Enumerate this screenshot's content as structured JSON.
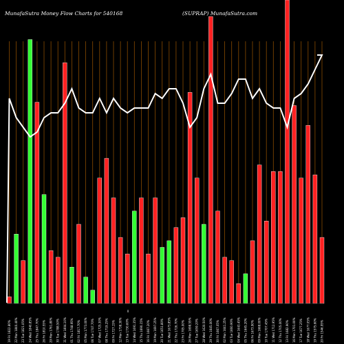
{
  "chart_data": {
    "type": "bar",
    "title_left": "MunafaSutra  Money Flow  Charts for 540168",
    "title_right": "(SUPRAP) MunafaSutra.com",
    "zero_label": "0",
    "grid": "vertical-lines",
    "colors": {
      "background": "#000000",
      "up": "#33ff33",
      "down": "#ff2222",
      "bar_outline": "#ffffff",
      "gridline": "#8a4b00",
      "line": "#ffffff"
    },
    "categories": [
      "20 Fri 1546.95%",
      "19 Thu 1575.60%",
      "18 Wed 1677.05%",
      "17 Tue 1677.25%",
      "16 Mon 1701.00%",
      "13 Fri 1682.90%",
      "12 Thu 1705.00%",
      "11 Wed 1712.95%",
      "10 Tue 1707.45%",
      "09 Mon 1668.00%",
      "06 Fri 1673.90%",
      "05 Thu 1645.20%",
      "04 Wed 1643.45%",
      "03 Tue 1660.90%",
      "02 Mon 1641.25%",
      "30 Fri 1667.05%",
      "29 Thu 1645.00%",
      "28 Wed 1620.50%",
      "27 Tue 1659.20%",
      "26 Mon 1698.55%",
      "23 Fri 1705.00%",
      "22 Thu 1726.70%",
      "21 Wed 1673.85%",
      "20 Tue 1651.80%",
      "19 Mon 1697.25%",
      "16 Fri 1667.20%",
      "15 Thu 1690.15%",
      "14 Wed 1691.35%",
      "13 Tue 1730.60%",
      "12 Mon 1738.30%",
      "09 Fri 1727.15%",
      "08 Thu 1719.25%",
      "07 Wed 1725.30%",
      "06 Tue 1747.70%",
      "05 Mon 1773.00%",
      "02 Fri 1817.70%",
      "01 Thu 1748.95%",
      "31 Wed 1804.10%",
      "30 Tue 1788.50%",
      "29 Mon 1761.80%",
      "26 Fri 1810.55%",
      "25 Thu 1847.70%",
      "24 Wed 1840.85%",
      "23 Tue 1821.05%",
      "22 Mon 1840.40%",
      "19 Fri 1822.80%"
    ],
    "values": [
      20,
      39,
      54,
      38,
      60,
      92,
      40,
      40,
      25,
      42,
      19,
      9,
      6,
      13,
      14,
      28,
      87,
      24,
      38,
      64,
      26,
      23,
      19,
      17,
      32,
      15,
      32,
      28,
      15,
      20,
      32,
      44,
      38,
      4,
      8,
      24,
      11,
      73,
      14,
      16,
      33,
      61,
      80,
      13,
      21,
      2
    ],
    "flow": [
      "down",
      "down",
      "down",
      "down",
      "down",
      "down",
      "down",
      "down",
      "down",
      "down",
      "down",
      "up",
      "down",
      "down",
      "down",
      "down",
      "down",
      "up",
      "down",
      "down",
      "down",
      "down",
      "up",
      "up",
      "down",
      "down",
      "down",
      "up",
      "down",
      "down",
      "down",
      "down",
      "down",
      "up",
      "up",
      "down",
      "up",
      "down",
      "down",
      "down",
      "up",
      "down",
      "up",
      "down",
      "up",
      "down"
    ],
    "price_line": [
      75,
      78,
      81,
      83,
      84,
      90,
      86,
      86,
      85,
      82,
      84,
      80,
      80,
      83,
      85,
      85,
      79,
      82,
      88,
      90,
      85,
      82,
      82,
      84,
      83,
      86,
      86,
      86,
      87,
      86,
      84,
      87,
      84,
      87,
      87,
      86,
      82,
      85,
      87,
      87,
      88,
      91,
      92,
      90,
      88,
      84
    ],
    "chronological_order": "right-to-left"
  }
}
